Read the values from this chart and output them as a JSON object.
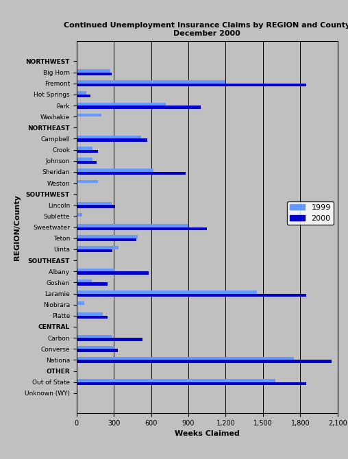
{
  "title": "Continued Unemployment Insurance Claims by REGION and County\nDecember 2000",
  "xlabel": "Weeks Claimed",
  "ylabel": "REGION/County",
  "categories": [
    "NORTHWEST",
    "Big Horn",
    "Fremont",
    "Hot Springs",
    "Park",
    "Washakie",
    "NORTHEAST",
    "Campbell",
    "Crook",
    "Johnson",
    "Sheridan",
    "Weston",
    "SOUTHWEST",
    "Lincoln",
    "Sublette",
    "Sweetwater",
    "Teton",
    "Uinta",
    "SOUTHEAST",
    "Albany",
    "Goshen",
    "Laramie",
    "Niobrara",
    "Platte",
    "CENTRAL",
    "Carbon",
    "Converse",
    "Nationa",
    "OTHER",
    "Out of State",
    "Unknown (WY)"
  ],
  "values_1999": [
    0,
    270,
    1200,
    80,
    720,
    200,
    0,
    520,
    130,
    130,
    620,
    170,
    0,
    280,
    45,
    900,
    490,
    340,
    0,
    310,
    120,
    1450,
    60,
    210,
    0,
    290,
    310,
    1750,
    0,
    1600,
    10
  ],
  "values_2000": [
    0,
    280,
    1850,
    110,
    1000,
    0,
    0,
    570,
    170,
    160,
    880,
    0,
    0,
    310,
    0,
    1050,
    480,
    290,
    0,
    580,
    250,
    1850,
    0,
    250,
    0,
    530,
    330,
    2050,
    0,
    1850,
    0
  ],
  "color_1999": "#6699FF",
  "color_2000": "#0000CC",
  "header_categories": [
    "NORTHWEST",
    "NORTHEAST",
    "SOUTHWEST",
    "SOUTHEAST",
    "CENTRAL",
    "OTHER"
  ],
  "background_color": "#C0C0C0",
  "xlim": [
    0,
    2100
  ],
  "xticks": [
    0,
    300,
    600,
    900,
    1200,
    1500,
    1800,
    2100
  ],
  "xtick_labels": [
    "0",
    "300",
    "600",
    "900",
    "1,200",
    "1,500",
    "1,800",
    "2,100"
  ],
  "figsize": [
    5.08,
    6.7
  ],
  "dpi": 100
}
